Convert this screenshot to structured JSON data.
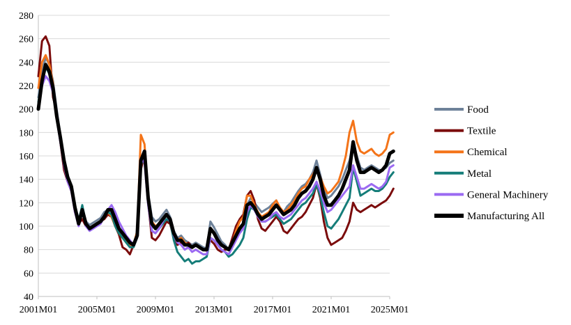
{
  "chart_data": {
    "type": "line",
    "title": "",
    "xlabel": "",
    "ylabel": "",
    "ylim": [
      40,
      280
    ],
    "yticks": [
      40,
      60,
      80,
      100,
      120,
      140,
      160,
      180,
      200,
      220,
      240,
      260,
      280
    ],
    "x_start": "2001M01",
    "x_end": "2025M01",
    "xticks": [
      "2001M01",
      "2005M01",
      "2009M01",
      "2013M01",
      "2017M01",
      "2021M01",
      "2025M01"
    ],
    "grid": "horizontal",
    "legend": "right",
    "x": [
      "2001M01",
      "2001M04",
      "2001M07",
      "2001M10",
      "2002M01",
      "2002M04",
      "2002M07",
      "2002M10",
      "2003M01",
      "2003M04",
      "2003M07",
      "2003M10",
      "2004M01",
      "2004M04",
      "2004M07",
      "2004M10",
      "2005M01",
      "2005M04",
      "2005M07",
      "2005M10",
      "2006M01",
      "2006M04",
      "2006M07",
      "2006M10",
      "2007M01",
      "2007M04",
      "2007M07",
      "2007M10",
      "2008M01",
      "2008M04",
      "2008M07",
      "2008M10",
      "2009M01",
      "2009M04",
      "2009M07",
      "2009M10",
      "2010M01",
      "2010M04",
      "2010M07",
      "2010M10",
      "2011M01",
      "2011M04",
      "2011M07",
      "2011M10",
      "2012M01",
      "2012M04",
      "2012M07",
      "2012M10",
      "2013M01",
      "2013M04",
      "2013M07",
      "2013M10",
      "2014M01",
      "2014M04",
      "2014M07",
      "2014M10",
      "2015M01",
      "2015M04",
      "2015M07",
      "2015M10",
      "2016M01",
      "2016M04",
      "2016M07",
      "2016M10",
      "2017M01",
      "2017M04",
      "2017M07",
      "2017M10",
      "2018M01",
      "2018M04",
      "2018M07",
      "2018M10",
      "2019M01",
      "2019M04",
      "2019M07",
      "2019M10",
      "2020M01",
      "2020M04",
      "2020M07",
      "2020M10",
      "2021M01",
      "2021M04",
      "2021M07",
      "2021M10",
      "2022M01",
      "2022M04",
      "2022M07",
      "2022M10",
      "2023M01",
      "2023M04",
      "2023M07",
      "2023M10",
      "2024M01",
      "2024M04",
      "2024M07",
      "2024M10",
      "2025M01",
      "2025M04"
    ],
    "series": [
      {
        "name": "Food",
        "color": "#6d8199",
        "width": 3,
        "values": [
          210,
          232,
          244,
          238,
          224,
          200,
          178,
          158,
          142,
          135,
          118,
          106,
          116,
          104,
          101,
          103,
          105,
          107,
          112,
          114,
          109,
          102,
          96,
          93,
          87,
          84,
          82,
          90,
          150,
          162,
          128,
          108,
          104,
          106,
          110,
          114,
          108,
          96,
          90,
          92,
          88,
          86,
          84,
          86,
          84,
          82,
          81,
          104,
          99,
          93,
          87,
          84,
          80,
          86,
          92,
          96,
          101,
          118,
          124,
          120,
          116,
          112,
          114,
          116,
          119,
          122,
          114,
          112,
          117,
          120,
          125,
          130,
          134,
          136,
          140,
          146,
          156,
          144,
          132,
          124,
          126,
          130,
          134,
          140,
          148,
          156,
          170,
          160,
          150,
          148,
          150,
          152,
          150,
          148,
          148,
          150,
          154,
          156
        ]
      },
      {
        "name": "Textile",
        "color": "#7b0b0b",
        "width": 3,
        "values": [
          228,
          258,
          262,
          254,
          210,
          198,
          172,
          148,
          138,
          130,
          112,
          102,
          106,
          100,
          98,
          99,
          101,
          104,
          106,
          110,
          108,
          100,
          93,
          82,
          80,
          76,
          84,
          94,
          148,
          162,
          120,
          90,
          88,
          92,
          98,
          104,
          102,
          90,
          84,
          86,
          84,
          86,
          82,
          84,
          82,
          80,
          80,
          88,
          85,
          80,
          78,
          80,
          80,
          90,
          100,
          106,
          110,
          126,
          130,
          122,
          106,
          98,
          96,
          100,
          104,
          108,
          104,
          96,
          94,
          98,
          102,
          106,
          108,
          112,
          118,
          124,
          136,
          124,
          104,
          90,
          84,
          86,
          88,
          90,
          96,
          104,
          120,
          114,
          112,
          114,
          116,
          118,
          116,
          118,
          120,
          122,
          126,
          132
        ]
      },
      {
        "name": "Chemical",
        "color": "#f47419",
        "width": 3,
        "values": [
          218,
          240,
          246,
          238,
          222,
          196,
          176,
          156,
          140,
          132,
          114,
          104,
          112,
          102,
          98,
          100,
          102,
          104,
          108,
          112,
          108,
          100,
          94,
          90,
          88,
          84,
          84,
          96,
          178,
          170,
          124,
          104,
          100,
          102,
          106,
          110,
          106,
          94,
          88,
          90,
          86,
          84,
          82,
          84,
          82,
          80,
          79,
          98,
          94,
          88,
          84,
          82,
          80,
          86,
          96,
          104,
          108,
          126,
          126,
          118,
          112,
          108,
          110,
          112,
          118,
          122,
          116,
          112,
          114,
          118,
          122,
          128,
          132,
          134,
          140,
          144,
          150,
          142,
          134,
          128,
          130,
          134,
          138,
          148,
          160,
          180,
          190,
          172,
          164,
          162,
          164,
          166,
          162,
          160,
          162,
          166,
          178,
          180
        ]
      },
      {
        "name": "Metal",
        "color": "#157d79",
        "width": 3,
        "values": [
          206,
          226,
          236,
          230,
          218,
          196,
          174,
          154,
          140,
          134,
          116,
          104,
          118,
          102,
          98,
          100,
          102,
          104,
          108,
          112,
          110,
          100,
          94,
          90,
          86,
          82,
          82,
          92,
          152,
          160,
          120,
          96,
          94,
          98,
          102,
          106,
          104,
          88,
          78,
          74,
          70,
          72,
          68,
          70,
          70,
          72,
          74,
          90,
          88,
          84,
          80,
          78,
          74,
          76,
          80,
          84,
          90,
          106,
          116,
          114,
          110,
          104,
          104,
          106,
          108,
          110,
          106,
          102,
          104,
          106,
          110,
          114,
          118,
          120,
          124,
          128,
          136,
          126,
          112,
          100,
          98,
          102,
          106,
          112,
          118,
          124,
          150,
          138,
          126,
          128,
          130,
          132,
          130,
          130,
          132,
          136,
          142,
          146
        ]
      },
      {
        "name": "General Machinery",
        "color": "#9b6af2",
        "width": 3,
        "values": [
          204,
          220,
          228,
          224,
          214,
          192,
          172,
          152,
          138,
          130,
          112,
          100,
          114,
          100,
          96,
          98,
          100,
          102,
          108,
          114,
          118,
          112,
          104,
          98,
          92,
          88,
          84,
          92,
          158,
          154,
          118,
          96,
          94,
          98,
          104,
          110,
          104,
          92,
          86,
          84,
          80,
          82,
          78,
          80,
          78,
          76,
          76,
          90,
          88,
          84,
          80,
          78,
          76,
          82,
          88,
          94,
          98,
          112,
          118,
          114,
          108,
          104,
          104,
          106,
          110,
          112,
          108,
          106,
          108,
          110,
          114,
          118,
          122,
          124,
          128,
          132,
          138,
          130,
          120,
          112,
          114,
          118,
          122,
          126,
          130,
          134,
          152,
          142,
          132,
          132,
          134,
          136,
          134,
          132,
          134,
          138,
          150,
          152
        ]
      },
      {
        "name": "Manufacturing All",
        "color": "#000000",
        "width": 5,
        "values": [
          200,
          224,
          238,
          232,
          218,
          194,
          176,
          156,
          142,
          134,
          116,
          102,
          114,
          102,
          98,
          100,
          102,
          104,
          108,
          114,
          114,
          106,
          98,
          94,
          90,
          86,
          84,
          92,
          156,
          164,
          124,
          102,
          98,
          102,
          106,
          110,
          106,
          94,
          88,
          88,
          84,
          84,
          82,
          84,
          82,
          80,
          80,
          98,
          94,
          88,
          84,
          82,
          80,
          86,
          92,
          98,
          102,
          118,
          120,
          116,
          110,
          106,
          108,
          110,
          114,
          118,
          114,
          110,
          112,
          114,
          118,
          124,
          128,
          130,
          134,
          140,
          150,
          140,
          126,
          118,
          118,
          122,
          126,
          132,
          140,
          148,
          172,
          156,
          146,
          146,
          148,
          150,
          148,
          146,
          148,
          152,
          162,
          164
        ]
      }
    ]
  }
}
